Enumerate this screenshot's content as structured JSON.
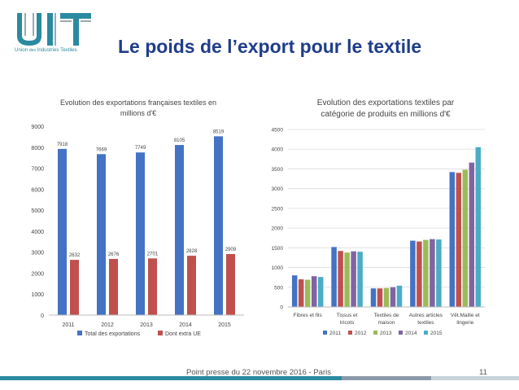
{
  "header": {
    "logo_text": "UIT",
    "logo_caption_pre": "Union ",
    "logo_caption_small": "des",
    "logo_caption_post": " Industries Textiles",
    "title": "Le poids de l’export pour le textile"
  },
  "colors": {
    "title": "#1f3d8a",
    "logo_teal": "#2a8aa0",
    "logo_grey": "#9aa8b4",
    "footer_teal": "#2a8aa0",
    "footer_grey": "#8a9aa8",
    "footer_light": "#c8d2da"
  },
  "chart_data": [
    {
      "type": "bar",
      "title": "Evolution des exportations françaises textiles en millions d'€",
      "categories": [
        "2011",
        "2012",
        "2013",
        "2014",
        "2015"
      ],
      "series": [
        {
          "name": "Total des exportations",
          "color": "#4472c4",
          "values": [
            7918,
            7669,
            7749,
            8105,
            8519
          ]
        },
        {
          "name": "Dont extra UE",
          "color": "#c0504d",
          "values": [
            2632,
            2676,
            2701,
            2828,
            2909
          ]
        }
      ],
      "ylim": [
        0,
        9000
      ],
      "yticks": [
        "0",
        "1000",
        "2000",
        "3000",
        "4000",
        "5000",
        "6000",
        "7000",
        "8000",
        "9000"
      ],
      "data_labels": true,
      "grid": false,
      "legend": "bottom"
    },
    {
      "type": "bar",
      "title": "Evolution des exportations textiles par catégorie de produits en millions d'€",
      "categories": [
        [
          "Fibres et fils"
        ],
        [
          "Tissus et",
          "tricots"
        ],
        [
          "Textiles de",
          "maison"
        ],
        [
          "Autres articles",
          "textiles"
        ],
        [
          "Vêt.Maille et",
          "lingerie"
        ]
      ],
      "series": [
        {
          "name": "2011",
          "color": "#4472c4",
          "values": [
            800,
            1520,
            470,
            1680,
            3420
          ]
        },
        {
          "name": "2012",
          "color": "#c0504d",
          "values": [
            700,
            1420,
            470,
            1660,
            3400
          ]
        },
        {
          "name": "2013",
          "color": "#9bbb59",
          "values": [
            690,
            1380,
            480,
            1700,
            3480
          ]
        },
        {
          "name": "2014",
          "color": "#8064a2",
          "values": [
            780,
            1410,
            500,
            1720,
            3660
          ]
        },
        {
          "name": "2015",
          "color": "#4bacc6",
          "values": [
            760,
            1400,
            540,
            1710,
            4050
          ]
        }
      ],
      "ylim": [
        0,
        4500
      ],
      "yticks": [
        "0",
        "500",
        "1000",
        "1500",
        "2000",
        "2500",
        "3000",
        "3500",
        "4000",
        "4500"
      ],
      "data_labels": false,
      "grid": true,
      "legend": "bottom"
    }
  ],
  "footer": {
    "text": "Point presse du 22 novembre 2016 - Paris",
    "page": "11"
  }
}
